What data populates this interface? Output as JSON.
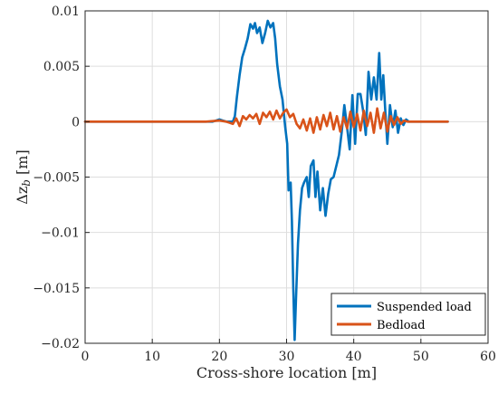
{
  "chart_data": {
    "type": "line",
    "xlabel": "Cross-shore location [m]",
    "ylabel_main": "Δz",
    "ylabel_sub": "b",
    "ylabel_unit": " [m]",
    "xlim": [
      0,
      60
    ],
    "ylim": [
      -0.02,
      0.01
    ],
    "xticks": [
      0,
      10,
      20,
      30,
      40,
      50,
      60
    ],
    "yticks": [
      0.01,
      0.005,
      0,
      -0.005,
      -0.01,
      -0.015,
      -0.02
    ],
    "ytick_labels": [
      "0.01",
      "0.005",
      "0",
      "−0.005",
      "−0.01",
      "−0.015",
      "−0.02"
    ],
    "grid": true,
    "legend_position": "bottom-right",
    "series": [
      {
        "name": "Suspended load",
        "color": "#0072BD",
        "x": [
          0,
          2,
          4,
          6,
          8,
          10,
          12,
          14,
          16,
          18,
          19,
          20,
          20.5,
          21,
          21.5,
          22,
          22.3,
          22.6,
          23,
          23.4,
          23.8,
          24.2,
          24.6,
          25,
          25.3,
          25.6,
          26,
          26.4,
          26.8,
          27.2,
          27.6,
          28,
          28.3,
          28.6,
          29,
          29.4,
          29.8,
          30.1,
          30.3,
          30.6,
          30.8,
          31,
          31.2,
          31.4,
          31.7,
          32,
          32.3,
          32.6,
          33,
          33.3,
          33.6,
          34,
          34.3,
          34.6,
          35,
          35.4,
          35.8,
          36.2,
          36.6,
          37,
          37.4,
          37.8,
          38.2,
          38.6,
          39,
          39.4,
          39.8,
          40.2,
          40.6,
          41,
          41.4,
          41.8,
          42.2,
          42.6,
          43,
          43.4,
          43.8,
          44.1,
          44.4,
          44.7,
          45,
          45.4,
          45.8,
          46.2,
          46.6,
          47,
          47.4,
          47.8,
          48.2,
          48.6,
          49,
          50,
          52,
          54
        ],
        "y": [
          0,
          0,
          0,
          0,
          0,
          0,
          0,
          0,
          0,
          0,
          0,
          0.0002,
          0.0001,
          0,
          0,
          0,
          0.0005,
          0.0022,
          0.0042,
          0.0058,
          0.0066,
          0.0075,
          0.0088,
          0.0084,
          0.0089,
          0.008,
          0.0085,
          0.0071,
          0.008,
          0.0091,
          0.0085,
          0.0089,
          0.0075,
          0.0052,
          0.0032,
          0.002,
          -0.0005,
          -0.002,
          -0.0062,
          -0.0055,
          -0.009,
          -0.015,
          -0.0197,
          -0.016,
          -0.011,
          -0.008,
          -0.006,
          -0.0055,
          -0.005,
          -0.0068,
          -0.004,
          -0.0035,
          -0.0068,
          -0.0045,
          -0.008,
          -0.006,
          -0.0085,
          -0.0065,
          -0.0052,
          -0.005,
          -0.004,
          -0.003,
          -0.001,
          0.0015,
          -0.0005,
          -0.0025,
          0.0024,
          -0.002,
          0.0025,
          0.0025,
          0.001,
          -0.0012,
          0.0045,
          0.002,
          0.004,
          0.002,
          0.0062,
          0.002,
          0.0042,
          0.001,
          -0.002,
          0.0015,
          -0.0005,
          0.001,
          -0.001,
          0.0003,
          -0.0003,
          0.0002,
          0,
          0,
          0,
          0,
          0,
          0
        ]
      },
      {
        "name": "Bedload",
        "color": "#D95319",
        "x": [
          0,
          2,
          4,
          6,
          8,
          10,
          12,
          14,
          16,
          18,
          20,
          21,
          22,
          22.5,
          23,
          23.5,
          24,
          24.5,
          25,
          25.5,
          26,
          26.5,
          27,
          27.5,
          28,
          28.5,
          29,
          29.5,
          30,
          30.5,
          31,
          31.5,
          32,
          32.5,
          33,
          33.5,
          34,
          34.5,
          35,
          35.5,
          36,
          36.5,
          37,
          37.5,
          38,
          38.5,
          39,
          39.5,
          40,
          40.5,
          41,
          41.5,
          42,
          42.5,
          43,
          43.5,
          44,
          44.5,
          45,
          45.5,
          46,
          46.5,
          47,
          47.5,
          48,
          50,
          52,
          54
        ],
        "y": [
          0,
          0,
          0,
          0,
          0,
          0,
          0,
          0,
          0,
          0,
          0.0001,
          0,
          -0.0002,
          0.0003,
          -0.0004,
          0.0005,
          0.0002,
          0.0006,
          0.0003,
          0.0007,
          -0.0002,
          0.0008,
          0.0004,
          0.0009,
          0.0002,
          0.001,
          0.0003,
          0.0008,
          0.0011,
          0.0004,
          0.0007,
          -0.0002,
          -0.0006,
          0.0002,
          -0.0008,
          0.0003,
          -0.001,
          0.0004,
          -0.0007,
          0.0006,
          -0.0004,
          0.0008,
          -0.0007,
          0.0005,
          -0.0009,
          0.0004,
          -0.0006,
          0.0009,
          -0.0005,
          0.0007,
          -0.0008,
          0.001,
          -0.0004,
          0.0008,
          -0.001,
          0.0012,
          -0.0006,
          0.0008,
          -0.0009,
          0.0005,
          -0.0003,
          0.0004,
          -0.0002,
          0.0001,
          0,
          0,
          0,
          0
        ]
      }
    ]
  }
}
